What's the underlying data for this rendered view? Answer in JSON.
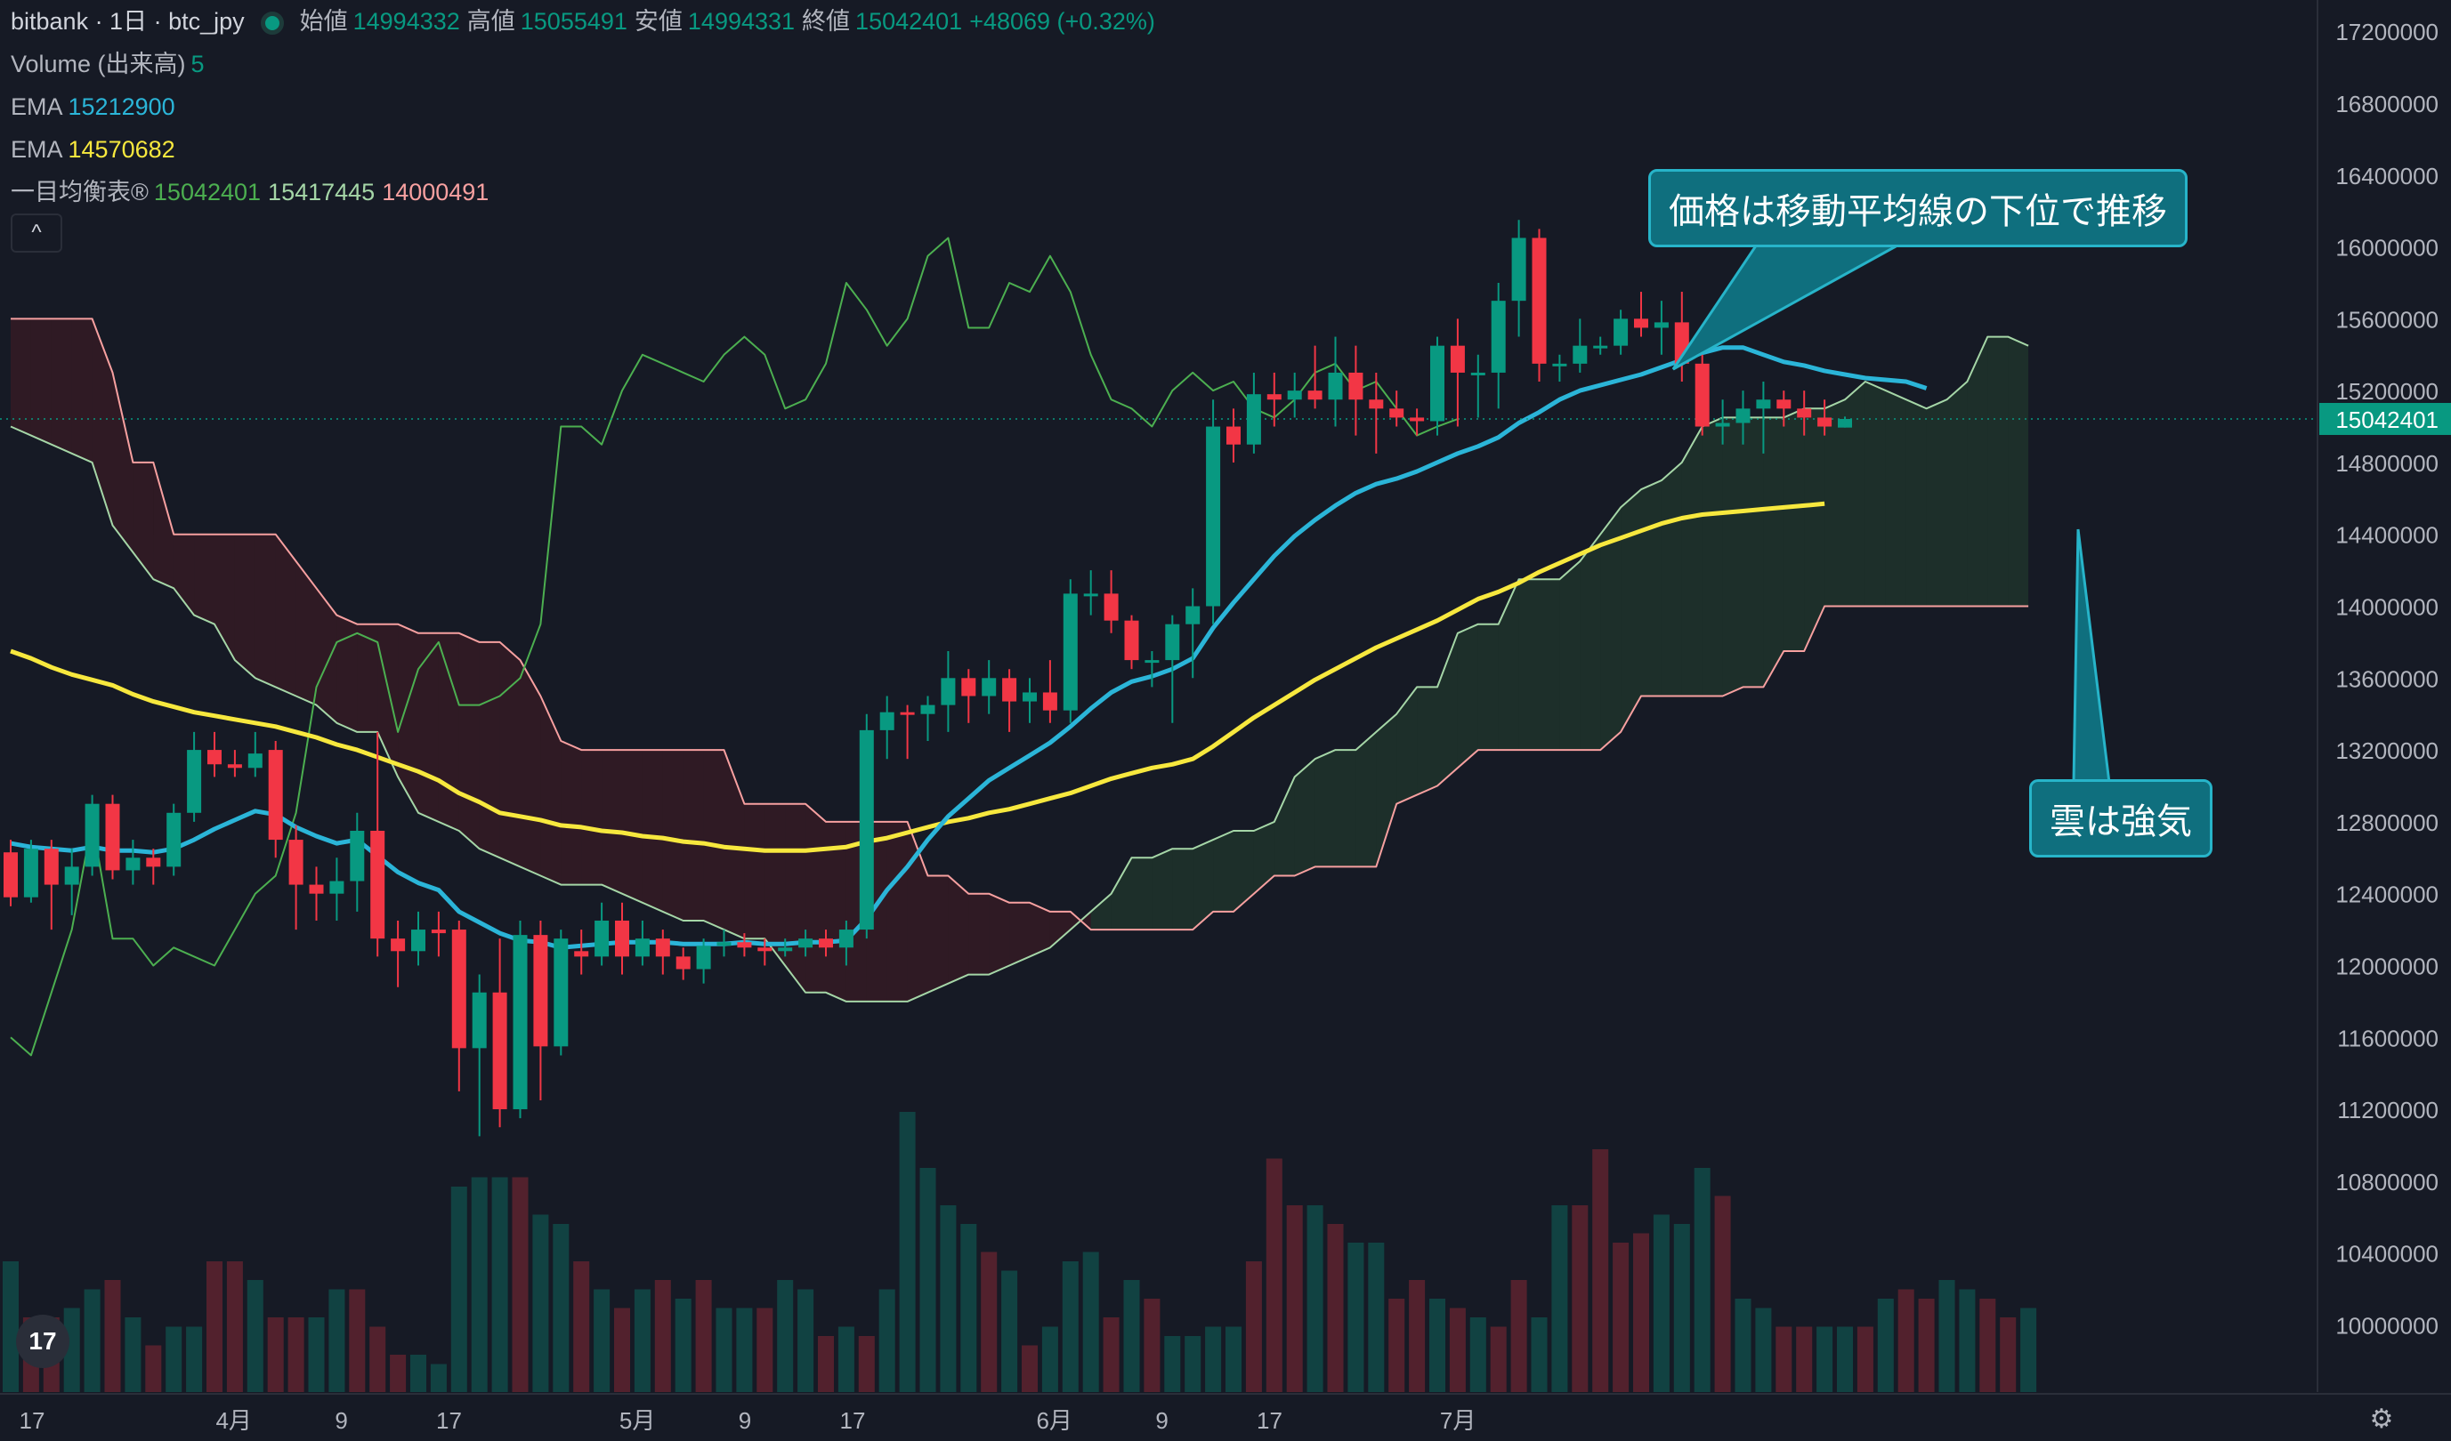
{
  "header": {
    "symbol": "bitbank · 1日 · btc_jpy",
    "open_label": "始値",
    "open": "14994332",
    "high_label": "高値",
    "high": "15055491",
    "low_label": "安値",
    "low": "14994331",
    "close_label": "終値",
    "close": "15042401",
    "change": "+48069 (+0.32%)"
  },
  "indicators": {
    "volume_label": "Volume (出来高)",
    "volume_value": "5",
    "ema1_label": "EMA",
    "ema1_value": "15212900",
    "ema2_label": "EMA",
    "ema2_value": "14570682",
    "ichimoku_label": "一目均衡表®",
    "ichimoku_v1": "15042401",
    "ichimoku_v2": "15417445",
    "ichimoku_v3": "14000491"
  },
  "collapse_label": "^",
  "annotations": {
    "callout1": "価格は移動平均線の下位で推移",
    "callout2": "雲は強気"
  },
  "logo_text": "17",
  "colors": {
    "background": "#161a25",
    "up": "#089981",
    "down": "#f23645",
    "ema_fast": "#2bb5d8",
    "ema_slow": "#f7e83e",
    "chikou": "#4caf50",
    "span_a": "#a5d6a7",
    "span_b": "#f7a0a0",
    "callout": "#0f6f7e",
    "last_price": "#089981"
  },
  "chart_data": {
    "type": "candlestick",
    "price_range": [
      9700000,
      17300000
    ],
    "last_price_label": "15042401",
    "y_ticks": [
      17200000,
      16800000,
      16400000,
      16000000,
      15600000,
      15200000,
      14800000,
      14400000,
      14000000,
      13600000,
      13200000,
      12800000,
      12400000,
      12000000,
      11600000,
      11200000,
      10800000,
      10400000,
      10000000
    ],
    "x_ticks": [
      {
        "label": "17",
        "i": 0
      },
      {
        "label": "4月",
        "i": 15
      },
      {
        "label": "9",
        "i": 23
      },
      {
        "label": "17",
        "i": 31
      },
      {
        "label": "5月",
        "i": 45
      },
      {
        "label": "9",
        "i": 53
      },
      {
        "label": "17",
        "i": 61
      },
      {
        "label": "6月",
        "i": 76
      },
      {
        "label": "9",
        "i": 84
      },
      {
        "label": "17",
        "i": 92
      },
      {
        "label": "7月",
        "i": 106
      }
    ],
    "candles": [
      [
        12630000,
        12380000,
        12700000,
        12330000
      ],
      [
        12380000,
        12650000,
        12700000,
        12350000
      ],
      [
        12650000,
        12450000,
        12700000,
        12200000
      ],
      [
        12450000,
        12550000,
        12650000,
        12280000
      ],
      [
        12550000,
        12900000,
        12950000,
        12500000
      ],
      [
        12900000,
        12530000,
        12950000,
        12480000
      ],
      [
        12530000,
        12600000,
        12700000,
        12450000
      ],
      [
        12600000,
        12550000,
        12650000,
        12450000
      ],
      [
        12550000,
        12850000,
        12900000,
        12500000
      ],
      [
        12850000,
        13200000,
        13300000,
        12800000
      ],
      [
        13200000,
        13120000,
        13300000,
        13050000
      ],
      [
        13120000,
        13100000,
        13200000,
        13050000
      ],
      [
        13100000,
        13180000,
        13300000,
        13050000
      ],
      [
        13200000,
        12700000,
        13250000,
        12600000
      ],
      [
        12700000,
        12450000,
        12780000,
        12200000
      ],
      [
        12450000,
        12400000,
        12550000,
        12250000
      ],
      [
        12400000,
        12470000,
        12600000,
        12250000
      ],
      [
        12470000,
        12750000,
        12850000,
        12300000
      ],
      [
        12750000,
        12150000,
        13300000,
        12050000
      ],
      [
        12150000,
        12080000,
        12250000,
        11880000
      ],
      [
        12080000,
        12200000,
        12300000,
        12000000
      ],
      [
        12200000,
        12180000,
        12300000,
        12050000
      ],
      [
        12200000,
        11540000,
        12250000,
        11300000
      ],
      [
        11540000,
        11850000,
        11950000,
        11050000
      ],
      [
        11850000,
        11200000,
        12150000,
        11100000
      ],
      [
        11200000,
        12170000,
        12250000,
        11150000
      ],
      [
        12170000,
        11550000,
        12250000,
        11250000
      ],
      [
        11550000,
        12150000,
        12200000,
        11500000
      ],
      [
        12080000,
        12050000,
        12200000,
        11950000
      ],
      [
        12050000,
        12250000,
        12350000,
        12000000
      ],
      [
        12250000,
        12050000,
        12350000,
        11950000
      ],
      [
        12050000,
        12150000,
        12250000,
        12000000
      ],
      [
        12150000,
        12050000,
        12200000,
        11950000
      ],
      [
        12050000,
        11980000,
        12100000,
        11920000
      ],
      [
        11980000,
        12110000,
        12150000,
        11900000
      ],
      [
        12110000,
        12130000,
        12200000,
        12050000
      ],
      [
        12130000,
        12100000,
        12180000,
        12050000
      ],
      [
        12100000,
        12080000,
        12150000,
        12000000
      ],
      [
        12080000,
        12100000,
        12150000,
        12050000
      ],
      [
        12100000,
        12150000,
        12200000,
        12050000
      ],
      [
        12150000,
        12100000,
        12200000,
        12050000
      ],
      [
        12100000,
        12200000,
        12250000,
        12000000
      ],
      [
        12200000,
        13310000,
        13400000,
        12150000
      ],
      [
        13310000,
        13410000,
        13500000,
        13150000
      ],
      [
        13410000,
        13400000,
        13450000,
        13150000
      ],
      [
        13400000,
        13450000,
        13500000,
        13250000
      ],
      [
        13450000,
        13600000,
        13750000,
        13300000
      ],
      [
        13600000,
        13500000,
        13650000,
        13350000
      ],
      [
        13500000,
        13600000,
        13700000,
        13400000
      ],
      [
        13600000,
        13470000,
        13650000,
        13300000
      ],
      [
        13470000,
        13520000,
        13600000,
        13350000
      ],
      [
        13520000,
        13420000,
        13700000,
        13350000
      ],
      [
        13420000,
        14070000,
        14150000,
        13350000
      ],
      [
        14070000,
        14070000,
        14200000,
        13950000
      ],
      [
        14070000,
        13920000,
        14200000,
        13850000
      ],
      [
        13920000,
        13700000,
        13950000,
        13650000
      ],
      [
        13700000,
        13700000,
        13750000,
        13550000
      ],
      [
        13700000,
        13900000,
        13950000,
        13350000
      ],
      [
        13900000,
        14000000,
        14100000,
        13600000
      ],
      [
        14000000,
        15000000,
        15150000,
        13900000
      ],
      [
        15000000,
        14900000,
        15100000,
        14800000
      ],
      [
        14900000,
        15180000,
        15300000,
        14850000
      ],
      [
        15180000,
        15150000,
        15300000,
        15000000
      ],
      [
        15150000,
        15200000,
        15300000,
        15050000
      ],
      [
        15200000,
        15150000,
        15450000,
        15100000
      ],
      [
        15150000,
        15300000,
        15500000,
        15000000
      ],
      [
        15300000,
        15150000,
        15450000,
        14950000
      ],
      [
        15150000,
        15100000,
        15300000,
        14850000
      ],
      [
        15100000,
        15050000,
        15200000,
        15000000
      ],
      [
        15050000,
        15030000,
        15100000,
        14950000
      ],
      [
        15030000,
        15450000,
        15500000,
        14950000
      ],
      [
        15450000,
        15300000,
        15600000,
        15000000
      ],
      [
        15300000,
        15300000,
        15400000,
        15050000
      ],
      [
        15300000,
        15700000,
        15800000,
        15100000
      ],
      [
        15700000,
        16050000,
        16150000,
        15500000
      ],
      [
        16050000,
        15350000,
        16100000,
        15250000
      ],
      [
        15350000,
        15350000,
        15400000,
        15250000
      ],
      [
        15350000,
        15450000,
        15600000,
        15300000
      ],
      [
        15450000,
        15450000,
        15500000,
        15400000
      ],
      [
        15450000,
        15600000,
        15650000,
        15400000
      ],
      [
        15600000,
        15550000,
        15750000,
        15500000
      ],
      [
        15550000,
        15580000,
        15700000,
        15400000
      ],
      [
        15580000,
        15350000,
        15750000,
        15250000
      ],
      [
        15350000,
        15000000,
        15400000,
        14950000
      ],
      [
        15000000,
        15020000,
        15150000,
        14900000
      ],
      [
        15020000,
        15100000,
        15200000,
        14900000
      ],
      [
        15100000,
        15150000,
        15250000,
        14850000
      ],
      [
        15150000,
        15100000,
        15200000,
        15000000
      ],
      [
        15100000,
        15050000,
        15200000,
        14950000
      ],
      [
        15050000,
        15000000,
        15150000,
        14950000
      ],
      [
        14994332,
        15042401,
        15055491,
        14994331
      ]
    ],
    "volume": [
      70,
      40,
      40,
      45,
      55,
      60,
      40,
      25,
      35,
      35,
      70,
      70,
      60,
      40,
      40,
      40,
      55,
      55,
      35,
      20,
      20,
      15,
      110,
      115,
      115,
      115,
      95,
      90,
      70,
      55,
      45,
      55,
      60,
      50,
      60,
      45,
      45,
      45,
      60,
      55,
      30,
      35,
      30,
      55,
      150,
      120,
      100,
      90,
      75,
      65,
      25,
      35,
      70,
      75,
      40,
      60,
      50,
      30,
      30,
      35,
      35,
      70,
      125,
      100,
      100,
      90,
      80,
      80,
      50,
      60,
      50,
      45,
      40,
      35,
      60,
      40,
      100,
      100,
      130,
      80,
      85,
      95,
      90,
      120,
      105,
      50,
      45,
      35,
      35,
      35,
      35,
      35,
      50,
      55,
      50,
      60,
      55,
      50,
      40,
      45
    ],
    "volume_up": [
      1,
      0,
      0,
      1,
      1,
      0,
      1,
      0,
      1,
      1,
      0,
      0,
      1,
      0,
      0,
      1,
      1,
      0,
      0,
      0,
      1,
      1,
      1,
      1,
      1,
      0,
      1,
      1,
      0,
      1,
      0,
      1,
      0,
      1,
      0,
      1,
      1,
      0,
      1,
      1,
      0,
      1,
      0,
      1,
      1,
      1,
      1,
      1,
      0,
      1,
      0,
      1,
      1,
      1,
      0,
      1,
      0,
      1,
      1,
      1,
      1,
      0,
      0,
      0,
      1,
      0,
      1,
      1,
      0,
      0,
      1,
      0,
      1,
      0,
      0,
      1,
      1,
      0,
      0,
      0,
      0,
      1,
      1,
      1,
      0,
      1,
      1,
      0,
      0,
      1,
      1,
      0,
      1,
      0,
      0,
      1,
      1,
      0,
      0,
      1
    ],
    "ema_fast": [
      12680000,
      12660000,
      12650000,
      12640000,
      12660000,
      12640000,
      12640000,
      12630000,
      12650000,
      12700000,
      12760000,
      12810000,
      12860000,
      12840000,
      12770000,
      12720000,
      12680000,
      12700000,
      12610000,
      12520000,
      12460000,
      12420000,
      12300000,
      12240000,
      12180000,
      12140000,
      12130000,
      12100000,
      12110000,
      12120000,
      12130000,
      12130000,
      12130000,
      12120000,
      12120000,
      12120000,
      12130000,
      12120000,
      12120000,
      12130000,
      12130000,
      12140000,
      12260000,
      12420000,
      12550000,
      12700000,
      12830000,
      12930000,
      13030000,
      13100000,
      13170000,
      13240000,
      13330000,
      13430000,
      13520000,
      13580000,
      13610000,
      13650000,
      13710000,
      13880000,
      14020000,
      14150000,
      14280000,
      14390000,
      14480000,
      14560000,
      14630000,
      14680000,
      14710000,
      14750000,
      14800000,
      14850000,
      14890000,
      14940000,
      15020000,
      15080000,
      15150000,
      15200000,
      15230000,
      15260000,
      15290000,
      15330000,
      15370000,
      15410000,
      15440000,
      15440000,
      15400000,
      15360000,
      15340000,
      15310000,
      15290000,
      15270000,
      15260000,
      15250000,
      15212900
    ],
    "ema_slow": [
      13750000,
      13710000,
      13660000,
      13620000,
      13590000,
      13560000,
      13510000,
      13470000,
      13440000,
      13410000,
      13390000,
      13370000,
      13350000,
      13330000,
      13300000,
      13270000,
      13230000,
      13200000,
      13160000,
      13120000,
      13080000,
      13030000,
      12960000,
      12910000,
      12850000,
      12830000,
      12810000,
      12780000,
      12770000,
      12750000,
      12740000,
      12720000,
      12710000,
      12690000,
      12680000,
      12660000,
      12650000,
      12640000,
      12640000,
      12640000,
      12650000,
      12660000,
      12690000,
      12710000,
      12740000,
      12770000,
      12800000,
      12820000,
      12850000,
      12870000,
      12900000,
      12930000,
      12960000,
      13000000,
      13040000,
      13070000,
      13100000,
      13120000,
      13150000,
      13220000,
      13300000,
      13380000,
      13450000,
      13520000,
      13590000,
      13650000,
      13710000,
      13770000,
      13820000,
      13870000,
      13920000,
      13980000,
      14040000,
      14080000,
      14130000,
      14190000,
      14240000,
      14290000,
      14340000,
      14380000,
      14420000,
      14460000,
      14490000,
      14510000,
      14520000,
      14530000,
      14540000,
      14550000,
      14560000,
      14570682
    ],
    "chikou": [
      11600000,
      11500000,
      11850000,
      12200000,
      12800000,
      12150000,
      12150000,
      12000000,
      12100000,
      12050000,
      12000000,
      12200000,
      12400000,
      12500000,
      12850000,
      13550000,
      13800000,
      13850000,
      13800000,
      13300000,
      13650000,
      13800000,
      13450000,
      13450000,
      13500000,
      13600000,
      13900000,
      15000000,
      15000000,
      14900000,
      15200000,
      15400000,
      15350000,
      15300000,
      15250000,
      15400000,
      15500000,
      15400000,
      15100000,
      15150000,
      15350000,
      15800000,
      15650000,
      15450000,
      15600000,
      15950000,
      16050000,
      15550000,
      15550000,
      15800000,
      15750000,
      15950000,
      15750000,
      15400000,
      15150000,
      15100000,
      15000000,
      15200000,
      15300000,
      15200000,
      15250000,
      15100000,
      15050000,
      15150000,
      15300000,
      15350000,
      15200000,
      15250000,
      15100000,
      14950000,
      15000000,
      15042401
    ],
    "span_a": [
      15000000,
      14950000,
      14900000,
      14850000,
      14800000,
      14450000,
      14300000,
      14150000,
      14100000,
      13950000,
      13900000,
      13700000,
      13600000,
      13550000,
      13500000,
      13450000,
      13350000,
      13300000,
      13300000,
      13050000,
      12850000,
      12800000,
      12750000,
      12650000,
      12600000,
      12550000,
      12500000,
      12450000,
      12450000,
      12450000,
      12400000,
      12350000,
      12300000,
      12250000,
      12250000,
      12200000,
      12150000,
      12150000,
      12000000,
      11850000,
      11850000,
      11800000,
      11800000,
      11800000,
      11800000,
      11850000,
      11900000,
      11950000,
      11950000,
      12000000,
      12050000,
      12100000,
      12200000,
      12300000,
      12400000,
      12600000,
      12600000,
      12650000,
      12650000,
      12700000,
      12750000,
      12750000,
      12800000,
      13050000,
      13150000,
      13200000,
      13200000,
      13300000,
      13400000,
      13550000,
      13550000,
      13850000,
      13900000,
      13900000,
      14150000,
      14150000,
      14150000,
      14250000,
      14400000,
      14550000,
      14650000,
      14700000,
      14800000,
      15000000,
      15050000,
      15050000,
      15050000,
      15050000,
      15100000,
      15100000,
      15150000,
      15250000,
      15200000,
      15150000,
      15100000,
      15150000,
      15250000,
      15500000,
      15500000,
      15450000
    ],
    "span_b": [
      15600000,
      15600000,
      15600000,
      15600000,
      15600000,
      15300000,
      14800000,
      14800000,
      14400000,
      14400000,
      14400000,
      14400000,
      14400000,
      14400000,
      14250000,
      14100000,
      13950000,
      13900000,
      13900000,
      13900000,
      13850000,
      13850000,
      13850000,
      13800000,
      13800000,
      13700000,
      13500000,
      13250000,
      13200000,
      13200000,
      13200000,
      13200000,
      13200000,
      13200000,
      13200000,
      13200000,
      12900000,
      12900000,
      12900000,
      12900000,
      12800000,
      12800000,
      12800000,
      12800000,
      12800000,
      12500000,
      12500000,
      12400000,
      12400000,
      12350000,
      12350000,
      12300000,
      12300000,
      12200000,
      12200000,
      12200000,
      12200000,
      12200000,
      12200000,
      12300000,
      12300000,
      12400000,
      12500000,
      12500000,
      12550000,
      12550000,
      12550000,
      12550000,
      12900000,
      12950000,
      13000000,
      13100000,
      13200000,
      13200000,
      13200000,
      13200000,
      13200000,
      13200000,
      13200000,
      13300000,
      13500000,
      13500000,
      13500000,
      13500000,
      13500000,
      13550000,
      13550000,
      13750000,
      13750000,
      14000000,
      14000000,
      14000000,
      14000000,
      14000000,
      14000000,
      14000000,
      14000000,
      14000000,
      14000000,
      14000000
    ]
  }
}
